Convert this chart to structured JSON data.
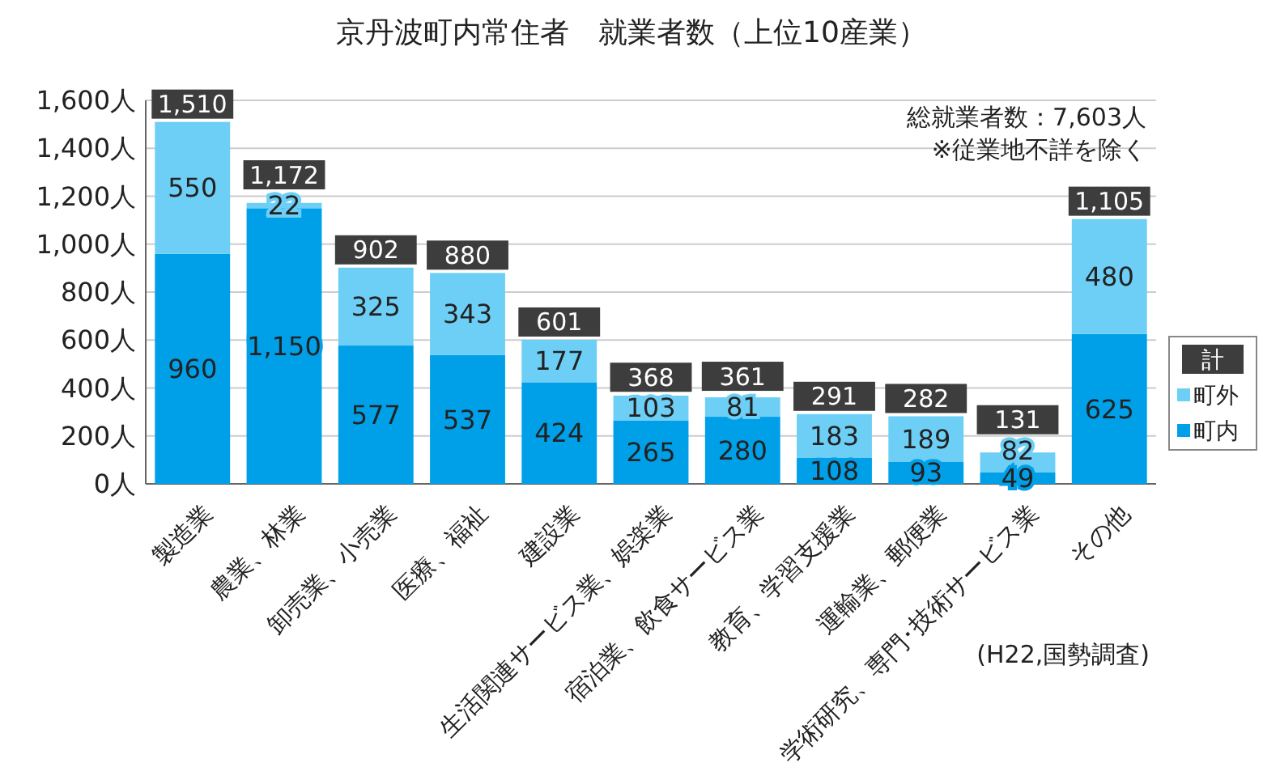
{
  "chart_data": {
    "type": "bar",
    "stacked": true,
    "title": "京丹波町内常住者　就業者数（上位10産業）",
    "categories": [
      "製造業",
      "農業、林業",
      "卸売業、小売業",
      "医療、福祉",
      "建設業",
      "生活関連サービス業、娯楽業",
      "宿泊業、飲食サービス業",
      "教育、学習支援業",
      "運輸業、郵便業",
      "学術研究、専門･技術サービス業",
      "その他"
    ],
    "series": [
      {
        "name": "町内",
        "color": "#00a0e9",
        "values": [
          960,
          1150,
          577,
          537,
          424,
          265,
          280,
          108,
          93,
          49,
          625
        ],
        "value_labels": [
          "960",
          "1,150",
          "577",
          "537",
          "424",
          "265",
          "280",
          "108",
          "93",
          "49",
          "625"
        ]
      },
      {
        "name": "町外",
        "color": "#6dcff6",
        "values": [
          550,
          22,
          325,
          343,
          177,
          103,
          81,
          183,
          189,
          82,
          480
        ],
        "value_labels": [
          "550",
          "22",
          "325",
          "343",
          "177",
          "103",
          "81",
          "183",
          "189",
          "82",
          "480"
        ]
      }
    ],
    "totals": [
      "1,510",
      "1,172",
      "902",
      "880",
      "601",
      "368",
      "361",
      "291",
      "282",
      "131",
      "1,105"
    ],
    "ylim": [
      0,
      1600
    ],
    "yticks": [
      {
        "value": 0,
        "label": "0人"
      },
      {
        "value": 200,
        "label": "200人"
      },
      {
        "value": 400,
        "label": "400人"
      },
      {
        "value": 600,
        "label": "600人"
      },
      {
        "value": 800,
        "label": "800人"
      },
      {
        "value": 1000,
        "label": "1,000人"
      },
      {
        "value": 1200,
        "label": "1,200人"
      },
      {
        "value": 1400,
        "label": "1,400人"
      },
      {
        "value": 1600,
        "label": "1,600人"
      }
    ],
    "grid": "y",
    "legend": "right",
    "legend_title": "計",
    "annotations": [
      "総就業者数：7,603人",
      "※従業地不詳を除く",
      "(H22,国勢調査)"
    ]
  }
}
